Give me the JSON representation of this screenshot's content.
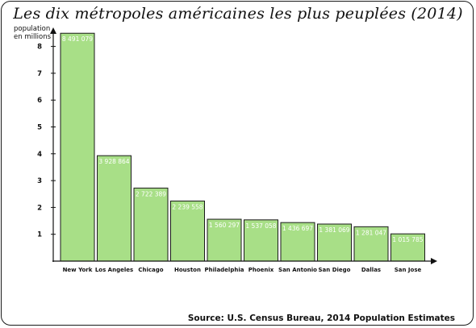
{
  "chart_data": {
    "type": "bar",
    "title": "Les dix métropoles américaines les plus peuplées (2014)",
    "ylabel": "population\nen millions",
    "xlabel": "",
    "source": "Source: U.S. Census Bureau, 2014 Population Estimates",
    "categories": [
      "New York",
      "Los Angeles",
      "Chicago",
      "Houston",
      "Philadelphia",
      "Phoenix",
      "San Antonio",
      "San Diego",
      "Dallas",
      "San Jose"
    ],
    "values": [
      8491079,
      3928864,
      2722389,
      2239558,
      1560297,
      1537058,
      1436697,
      1381069,
      1281047,
      1015785
    ],
    "value_labels": [
      "8 491 079",
      "3 928 864",
      "2 722 389",
      "2 239 558",
      "1 560 297",
      "1 537 058",
      "1 436 697",
      "1 381 069",
      "1 281 047",
      "1 015 785"
    ],
    "yticks": [
      1,
      2,
      3,
      4,
      5,
      6,
      7,
      8
    ],
    "ylim": [
      0,
      9
    ],
    "grid": false,
    "bar_color": "#a8df87",
    "bar_edge_color": "#1a1a1a"
  }
}
